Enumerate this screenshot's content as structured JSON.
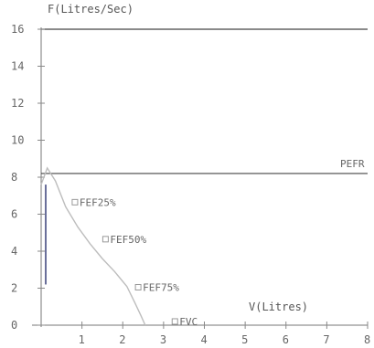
{
  "chart_data": {
    "type": "line",
    "ylabel": "F(Litres/Sec)",
    "xlabel": "V(Litres)",
    "xlim": [
      0,
      8
    ],
    "ylim": [
      0,
      16
    ],
    "x_ticks": [
      1,
      2,
      3,
      4,
      5,
      6,
      7,
      8
    ],
    "y_ticks": [
      0,
      2,
      4,
      6,
      8,
      10,
      12,
      14,
      16
    ],
    "reference_lines": [
      {
        "label": "PEFR",
        "y": 8.2
      }
    ],
    "series": [
      {
        "points": [
          {
            "x": 0.0,
            "y": 7.6
          },
          {
            "x": 0.15,
            "y": 8.5
          },
          {
            "x": 0.35,
            "y": 7.8
          },
          {
            "x": 0.6,
            "y": 6.4
          },
          {
            "x": 0.9,
            "y": 5.3
          },
          {
            "x": 1.2,
            "y": 4.4
          },
          {
            "x": 1.5,
            "y": 3.6
          },
          {
            "x": 1.8,
            "y": 2.9
          },
          {
            "x": 2.1,
            "y": 2.1
          },
          {
            "x": 2.3,
            "y": 1.2
          },
          {
            "x": 2.45,
            "y": 0.5
          },
          {
            "x": 2.55,
            "y": 0.0
          }
        ]
      }
    ],
    "annotations": [
      {
        "label": "FEF25%",
        "x": 0.85,
        "y": 6.6
      },
      {
        "label": "FEF50%",
        "x": 1.6,
        "y": 4.6
      },
      {
        "label": "FEF75%",
        "x": 2.4,
        "y": 2.0
      },
      {
        "label": "FVC",
        "x": 3.3,
        "y": 0.15
      }
    ]
  }
}
